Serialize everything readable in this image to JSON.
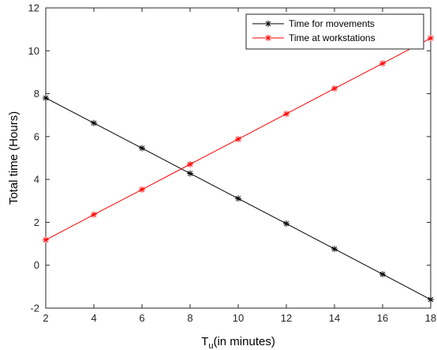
{
  "chart_data": {
    "type": "line",
    "x": [
      2,
      4,
      6,
      8,
      10,
      12,
      14,
      16,
      18
    ],
    "series": [
      {
        "name": "Time for movements",
        "color": "#000000",
        "marker": "asterisk",
        "values": [
          7.8,
          6.63,
          5.46,
          4.28,
          3.11,
          1.94,
          0.76,
          -0.42,
          -1.6
        ]
      },
      {
        "name": "Time at workstations",
        "color": "#ff0000",
        "marker": "asterisk",
        "values": [
          1.18,
          2.36,
          3.53,
          4.71,
          5.88,
          7.06,
          8.24,
          9.41,
          10.59
        ]
      }
    ],
    "xlim": [
      2,
      18
    ],
    "ylim": [
      -2,
      12
    ],
    "xticks": [
      "2",
      "4",
      "6",
      "8",
      "10",
      "12",
      "14",
      "16",
      "18"
    ],
    "yticks": [
      "-2",
      "0",
      "2",
      "4",
      "6",
      "8",
      "10",
      "12"
    ],
    "xlabel_main": "T",
    "xlabel_sub": "u",
    "xlabel_rest": "(in minutes)",
    "ylabel": "Total time (Hours)",
    "legend_position": "top-right",
    "grid": false
  }
}
